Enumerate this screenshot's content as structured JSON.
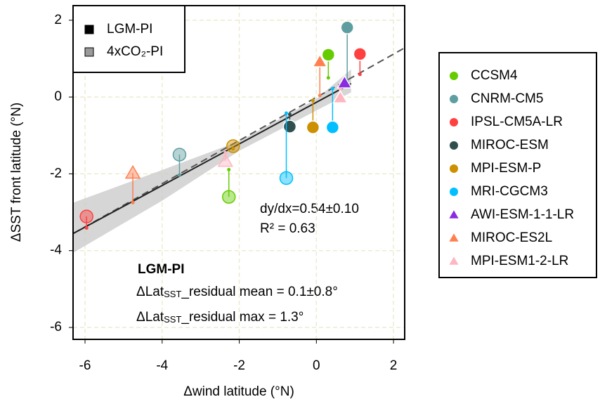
{
  "chart_data": {
    "type": "scatter",
    "xlabel": "Δwind latitude (°N)",
    "ylabel": "ΔSST front latitude (°N)",
    "xlim": [
      -6.31,
      2.29
    ],
    "ylim": [
      -6.31,
      2.38
    ],
    "xticks": [
      -6,
      -4,
      -2,
      0,
      2
    ],
    "yticks": [
      -6,
      -4,
      -2,
      0,
      2
    ],
    "grid": true,
    "groups": [
      {
        "name": "LGM-PI",
        "color": "#000000"
      },
      {
        "name": "4xCO₂-PI",
        "color": "#9a9a9a"
      }
    ],
    "series": [
      {
        "name": "CCSM4",
        "color": "#66cc00",
        "marker": "circle",
        "x": [
          0.31,
          -2.27
        ],
        "values": [
          1.1,
          -2.6
        ],
        "fit": [
          0.5,
          -1.89
        ]
      },
      {
        "name": "CNRM-CM5",
        "color": "#5f9ea0",
        "marker": "circle",
        "x": [
          0.8,
          -3.55
        ],
        "values": [
          1.81,
          -1.5
        ],
        "fit": [
          0.4,
          -2.03
        ]
      },
      {
        "name": "IPSL-CM5A-LR",
        "color": "#ff4040",
        "marker": "circle",
        "x": [
          1.13,
          -5.96
        ],
        "values": [
          1.12,
          -3.11
        ],
        "fit": [
          0.59,
          -3.41
        ]
      },
      {
        "name": "MIROC-ESM",
        "color": "#2f4f4f",
        "marker": "circle",
        "x": [
          -0.69,
          null
        ],
        "values": [
          -0.77,
          null
        ],
        "fit": [
          -0.45,
          null
        ]
      },
      {
        "name": "MPI-ESM-P",
        "color": "#cc9000",
        "marker": "circle",
        "x": [
          -0.09,
          -2.16
        ],
        "values": [
          -0.79,
          -1.28
        ],
        "fit": [
          -0.09,
          -1.35
        ]
      },
      {
        "name": "MRI-CGCM3",
        "color": "#00bfff",
        "marker": "circle",
        "x": [
          0.42,
          -0.78
        ],
        "values": [
          -0.79,
          -2.11
        ],
        "fit": [
          0.22,
          -0.42
        ]
      },
      {
        "name": "AWI-ESM-1-1-LR",
        "color": "#8a2be2",
        "marker": "triangle",
        "x": [
          0.73,
          null
        ],
        "values": [
          0.37,
          null
        ],
        "fit": [
          0.3,
          null
        ]
      },
      {
        "name": "MIROC-ES2L",
        "color": "#ff7f50",
        "marker": "triangle",
        "x": [
          0.09,
          -4.76
        ],
        "values": [
          0.92,
          -1.98
        ],
        "fit": [
          0.04,
          -2.75
        ]
      },
      {
        "name": "MPI-ESM1-2-LR",
        "color": "#ffb6c1",
        "marker": "triangle",
        "x": [
          0.62,
          -2.36
        ],
        "values": [
          -0.02,
          -1.67
        ],
        "fit": [
          0.2,
          -1.45
        ]
      }
    ],
    "fit_line": {
      "x": [
        -6.3,
        0.9
      ],
      "y": [
        -3.55,
        0.35
      ]
    },
    "dashed_line": {
      "x": [
        -6.3,
        2.29
      ],
      "y": [
        -3.55,
        1.28
      ]
    },
    "band": {
      "x": [
        -6.3,
        -4,
        -2,
        0,
        0.9
      ],
      "upper": [
        -2.75,
        -1.9,
        -1.15,
        -0.05,
        0.72
      ],
      "lower": [
        -4.05,
        -2.7,
        -1.4,
        -0.35,
        0.12
      ]
    },
    "slope_text": "dy/dx=0.54±0.10",
    "r2_text": "R² = 0.63",
    "box_title": "LGM-PI",
    "residual_lines": [
      [
        "ΔLat",
        "SST",
        "_residual mean = 0.1±0.8°"
      ],
      [
        "ΔLat",
        "SST",
        "_residual max = 1.3°"
      ]
    ]
  }
}
